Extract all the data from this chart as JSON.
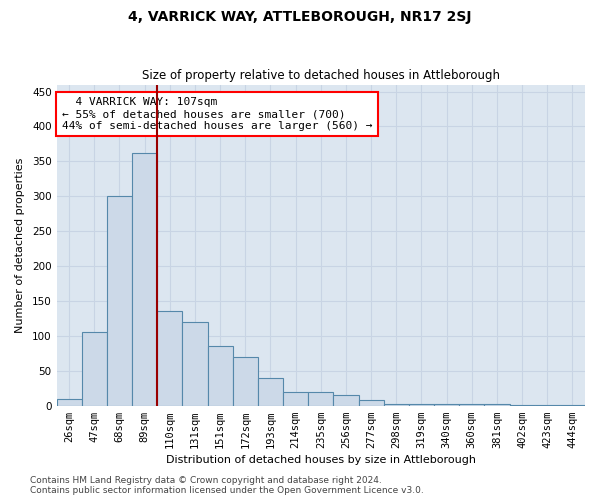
{
  "title": "4, VARRICK WAY, ATTLEBOROUGH, NR17 2SJ",
  "subtitle": "Size of property relative to detached houses in Attleborough",
  "xlabel": "Distribution of detached houses by size in Attleborough",
  "ylabel": "Number of detached properties",
  "footer1": "Contains HM Land Registry data © Crown copyright and database right 2024.",
  "footer2": "Contains public sector information licensed under the Open Government Licence v3.0.",
  "annotation_line1": "  4 VARRICK WAY: 107sqm",
  "annotation_line2": "← 55% of detached houses are smaller (700)",
  "annotation_line3": "44% of semi-detached houses are larger (560) →",
  "property_size": 107,
  "bar_color": "#ccd9e8",
  "bar_edge_color": "#5588aa",
  "marker_color": "#990000",
  "categories": [
    "26sqm",
    "47sqm",
    "68sqm",
    "89sqm",
    "110sqm",
    "131sqm",
    "151sqm",
    "172sqm",
    "193sqm",
    "214sqm",
    "235sqm",
    "256sqm",
    "277sqm",
    "298sqm",
    "319sqm",
    "340sqm",
    "360sqm",
    "381sqm",
    "402sqm",
    "423sqm",
    "444sqm"
  ],
  "values": [
    10,
    105,
    300,
    362,
    135,
    120,
    85,
    70,
    40,
    20,
    20,
    15,
    8,
    3,
    2,
    2,
    2,
    2,
    1,
    1,
    1
  ],
  "ylim": [
    0,
    460
  ],
  "yticks": [
    0,
    50,
    100,
    150,
    200,
    250,
    300,
    350,
    400,
    450
  ],
  "grid_color": "#c8d4e4",
  "plot_background": "#dce6f0",
  "fig_background": "#ffffff",
  "red_line_x": 3.5,
  "annot_fontsize": 8,
  "title_fontsize": 10,
  "subtitle_fontsize": 8.5,
  "xlabel_fontsize": 8,
  "ylabel_fontsize": 8,
  "tick_fontsize": 7.5,
  "footer_fontsize": 6.5
}
